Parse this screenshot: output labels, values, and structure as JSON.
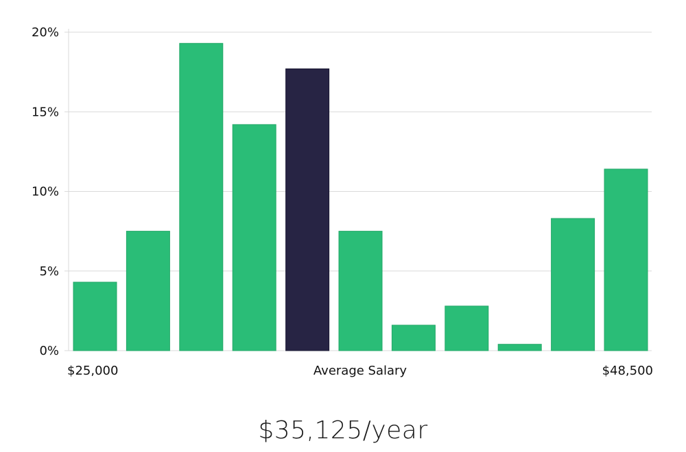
{
  "chart_data": {
    "type": "bar",
    "title": "",
    "xlabel": "Average Salary",
    "ylabel": "",
    "ylim": [
      0,
      20
    ],
    "yticks": [
      0,
      5,
      10,
      15,
      20
    ],
    "ytick_labels": [
      "0%",
      "5%",
      "10%",
      "15%",
      "20%"
    ],
    "grid": true,
    "x_range_labels": {
      "min": "$25,000",
      "max": "$48,500"
    },
    "values": [
      4.3,
      7.5,
      19.3,
      14.2,
      17.7,
      7.5,
      1.6,
      2.8,
      0.4,
      8.3,
      11.4
    ],
    "highlight_index": 4,
    "colors": {
      "bar": "#2abd77",
      "highlight": "#272444"
    }
  },
  "summary": {
    "average_salary": "$35,125/year"
  }
}
